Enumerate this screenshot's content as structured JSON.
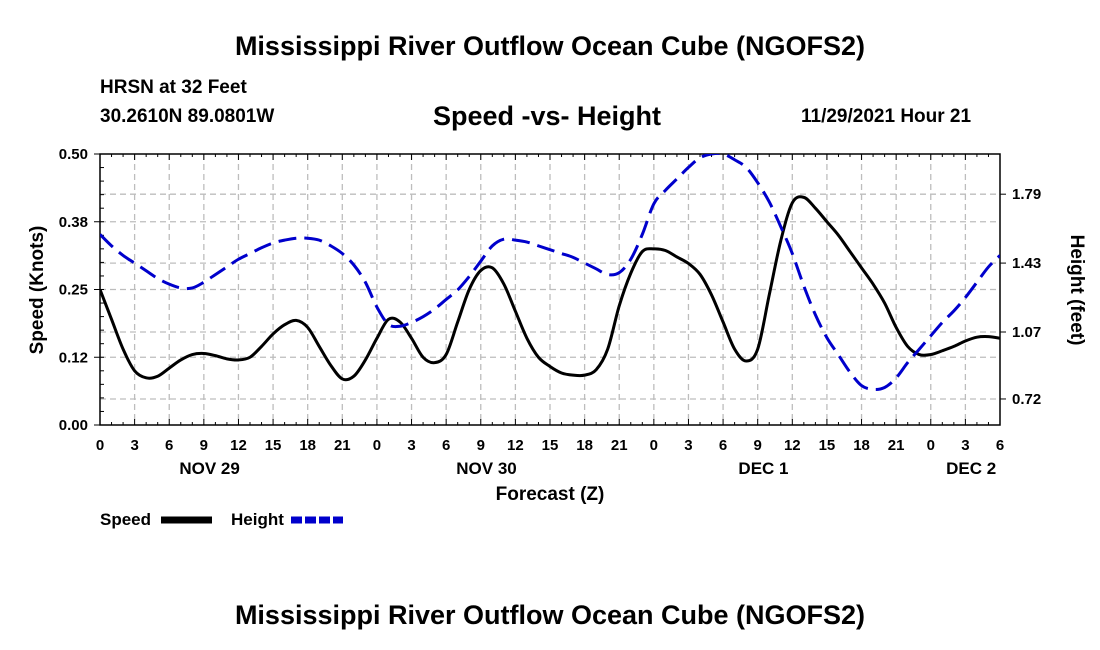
{
  "header": {
    "title": "Mississippi River Outflow Ocean Cube (NGOFS2)",
    "station": "HRSN at 32 Feet",
    "coords": "30.2610N  89.0801W",
    "subtitle": "Speed -vs- Height",
    "datetime": "11/29/2021 Hour 21"
  },
  "footer": {
    "title": "Mississippi River Outflow Ocean Cube (NGOFS2)"
  },
  "chart_data": {
    "type": "line",
    "title": "Speed -vs- Height",
    "xlabel": "Forecast (Z)",
    "ylabel": "Speed (Knots)",
    "y2label": "Height (feet)",
    "xlim": [
      0,
      78
    ],
    "ylim": [
      0,
      0.5
    ],
    "y2lim": [
      0.584,
      2.0
    ],
    "x_tick_values": [
      0,
      3,
      6,
      9,
      12,
      15,
      18,
      21,
      24,
      27,
      30,
      33,
      36,
      39,
      42,
      45,
      48,
      51,
      54,
      57,
      60,
      63,
      66,
      69,
      72,
      75,
      78
    ],
    "x_tick_labels": [
      "0",
      "3",
      "6",
      "9",
      "12",
      "15",
      "18",
      "21",
      "0",
      "3",
      "6",
      "9",
      "12",
      "15",
      "18",
      "21",
      "0",
      "3",
      "6",
      "9",
      "12",
      "15",
      "18",
      "21",
      "0",
      "3",
      "6"
    ],
    "day_labels": [
      {
        "label": "NOV 29",
        "x": 9.5
      },
      {
        "label": "NOV 30",
        "x": 33.5
      },
      {
        "label": "DEC 1",
        "x": 57.5
      },
      {
        "label": "DEC 2",
        "x": 75.5
      }
    ],
    "y_ticks": [
      0.0,
      0.125,
      0.25,
      0.375,
      0.5
    ],
    "y_tick_labels": [
      "0.00",
      "0.12",
      "0.25",
      "0.38",
      "0.50"
    ],
    "y2_ticks": [
      0.72,
      1.07,
      1.43,
      1.79
    ],
    "y2_tick_labels": [
      "0.72",
      "1.07",
      "1.43",
      "1.79"
    ],
    "grid": true,
    "legend": [
      {
        "name": "Speed",
        "color": "#000000",
        "style": "solid"
      },
      {
        "name": "Height",
        "color": "#0000cc",
        "style": "dashed"
      }
    ],
    "series": [
      {
        "name": "Speed",
        "axis": "left",
        "color": "#000000",
        "x": [
          0,
          1,
          2,
          3,
          4,
          5,
          6,
          7,
          8,
          9,
          10,
          11,
          12,
          13,
          14,
          15,
          16,
          17,
          18,
          19,
          20,
          21,
          22,
          23,
          24,
          25,
          26,
          27,
          28,
          29,
          30,
          31,
          32,
          33,
          34,
          35,
          36,
          37,
          38,
          39,
          40,
          41,
          42,
          43,
          44,
          45,
          46,
          47,
          48,
          49,
          50,
          51,
          52,
          53,
          54,
          55,
          56,
          57,
          58,
          59,
          60,
          61,
          62,
          63,
          64,
          65,
          66,
          67,
          68,
          69,
          70,
          71,
          72,
          73,
          74,
          75,
          76,
          77,
          78
        ],
        "values": [
          0.25,
          0.195,
          0.14,
          0.1,
          0.087,
          0.09,
          0.105,
          0.12,
          0.13,
          0.132,
          0.128,
          0.122,
          0.12,
          0.125,
          0.145,
          0.168,
          0.185,
          0.193,
          0.18,
          0.145,
          0.11,
          0.085,
          0.09,
          0.12,
          0.16,
          0.195,
          0.19,
          0.16,
          0.125,
          0.115,
          0.13,
          0.19,
          0.25,
          0.285,
          0.29,
          0.26,
          0.21,
          0.16,
          0.125,
          0.108,
          0.096,
          0.092,
          0.092,
          0.102,
          0.14,
          0.22,
          0.28,
          0.32,
          0.325,
          0.322,
          0.31,
          0.298,
          0.278,
          0.24,
          0.19,
          0.14,
          0.118,
          0.14,
          0.24,
          0.34,
          0.41,
          0.42,
          0.4,
          0.375,
          0.35,
          0.32,
          0.29,
          0.26,
          0.225,
          0.18,
          0.145,
          0.13,
          0.13,
          0.137,
          0.145,
          0.155,
          0.162,
          0.163,
          0.16
        ]
      },
      {
        "name": "Height",
        "axis": "right",
        "color": "#0000cc",
        "x": [
          0,
          1,
          2,
          3,
          4,
          5,
          6,
          7,
          8,
          9,
          10,
          11,
          12,
          13,
          14,
          15,
          16,
          17,
          18,
          19,
          20,
          21,
          22,
          23,
          24,
          25,
          26,
          27,
          28,
          29,
          30,
          31,
          32,
          33,
          34,
          35,
          36,
          37,
          38,
          39,
          40,
          41,
          42,
          43,
          44,
          45,
          46,
          47,
          48,
          49,
          50,
          51,
          52,
          53,
          54,
          55,
          56,
          57,
          58,
          59,
          60,
          61,
          62,
          63,
          64,
          65,
          66,
          67,
          68,
          69,
          70,
          71,
          72,
          73,
          74,
          75,
          76,
          77,
          78
        ],
        "values": [
          1.58,
          1.52,
          1.47,
          1.43,
          1.39,
          1.35,
          1.32,
          1.3,
          1.3,
          1.33,
          1.37,
          1.41,
          1.45,
          1.48,
          1.51,
          1.535,
          1.55,
          1.56,
          1.56,
          1.55,
          1.52,
          1.48,
          1.42,
          1.33,
          1.2,
          1.11,
          1.1,
          1.12,
          1.15,
          1.19,
          1.24,
          1.29,
          1.36,
          1.44,
          1.52,
          1.555,
          1.55,
          1.54,
          1.52,
          1.5,
          1.48,
          1.46,
          1.43,
          1.4,
          1.37,
          1.38,
          1.45,
          1.58,
          1.74,
          1.81,
          1.87,
          1.93,
          1.98,
          2.0,
          2.0,
          1.97,
          1.93,
          1.85,
          1.75,
          1.62,
          1.48,
          1.31,
          1.16,
          1.04,
          0.95,
          0.86,
          0.79,
          0.77,
          0.78,
          0.83,
          0.91,
          0.98,
          1.05,
          1.12,
          1.18,
          1.25,
          1.33,
          1.41,
          1.47
        ]
      }
    ]
  }
}
